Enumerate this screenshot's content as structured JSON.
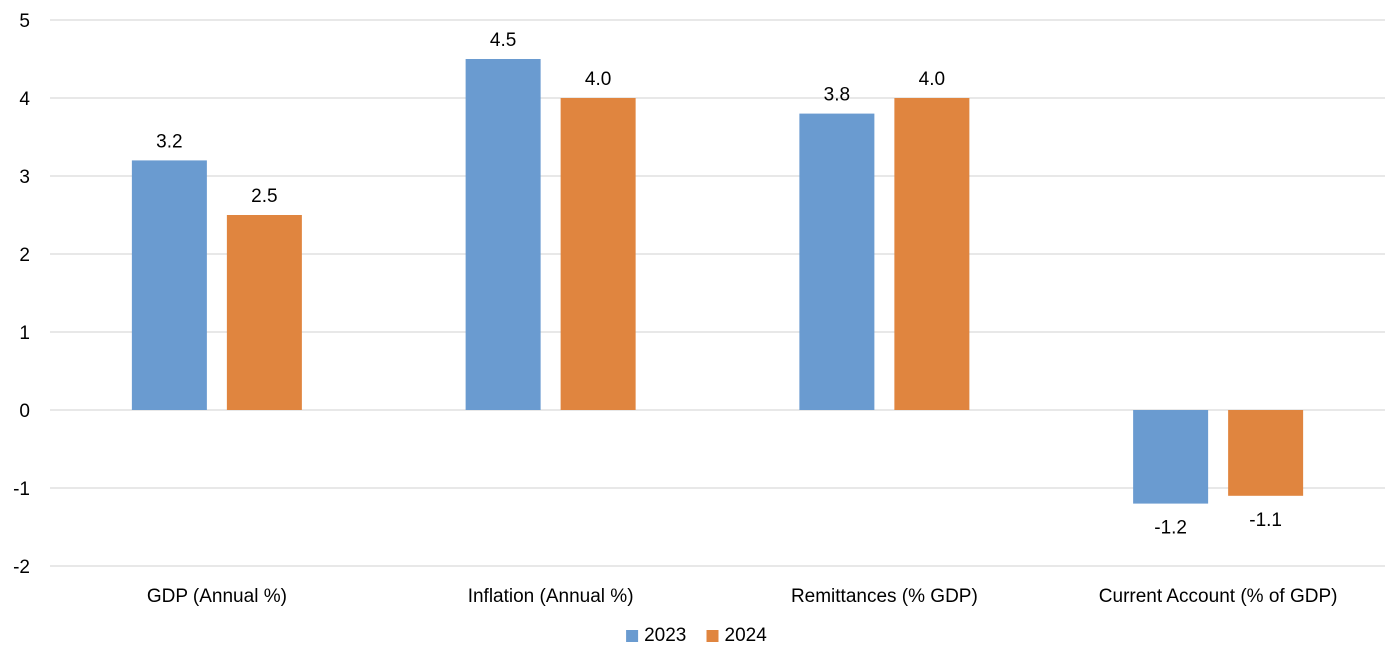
{
  "chart_data": {
    "type": "bar",
    "categories": [
      "GDP (Annual %)",
      "Inflation (Annual %)",
      "Remittances (% GDP)",
      "Current Account  (% of GDP)"
    ],
    "series": [
      {
        "name": "2023",
        "values": [
          3.2,
          4.5,
          3.8,
          -1.2
        ],
        "color": "#6a9bd0"
      },
      {
        "name": "2024",
        "values": [
          2.5,
          4.0,
          4.0,
          -1.1
        ],
        "color": "#e0853f"
      }
    ],
    "data_labels": [
      [
        "3.2",
        "4.5",
        "3.8",
        "-1.2"
      ],
      [
        "2.5",
        "4.0",
        "4.0",
        "-1.1"
      ]
    ],
    "y_ticks": [
      5,
      4,
      3,
      2,
      1,
      0,
      -1,
      -2
    ],
    "ylim": [
      -2,
      5
    ],
    "grid": true,
    "gridline_color": "#d9d9d9",
    "legend_position": "bottom-center"
  }
}
